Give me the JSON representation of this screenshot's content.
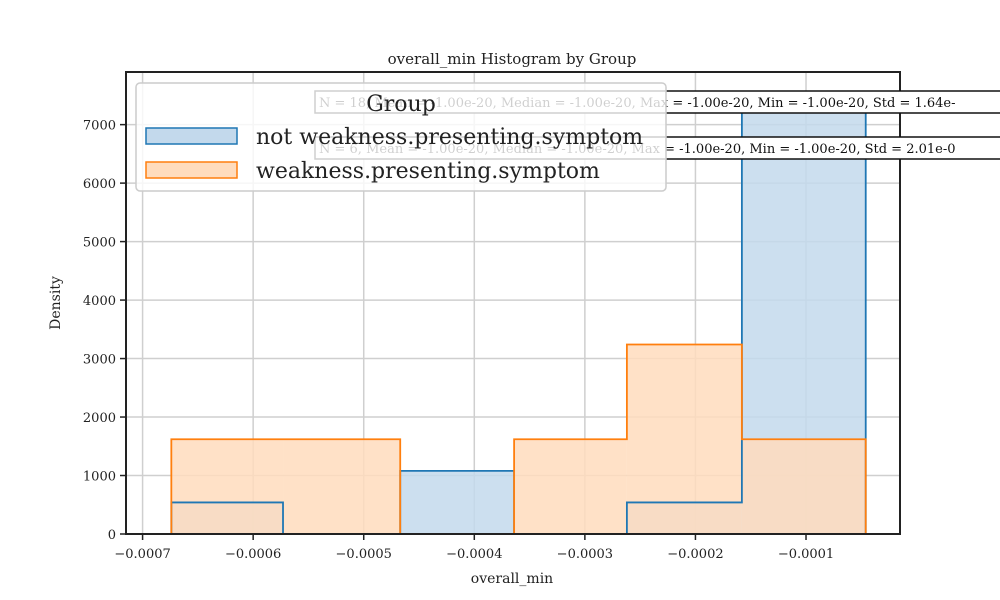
{
  "chart_data": {
    "type": "histogram",
    "title": "overall_min Histogram by Group",
    "xlabel": "overall_min",
    "ylabel": "Density",
    "xlim": [
      -0.000715,
      -1.5e-05
    ],
    "ylim": [
      0,
      7900
    ],
    "x_ticks": [
      -0.0007,
      -0.0006,
      -0.0005,
      -0.0004,
      -0.0003,
      -0.0002,
      -0.0001
    ],
    "x_tick_labels": [
      "−0.0007",
      "−0.0006",
      "−0.0005",
      "−0.0004",
      "−0.0003",
      "−0.0002",
      "−0.0001"
    ],
    "y_ticks": [
      0,
      1000,
      2000,
      3000,
      4000,
      5000,
      6000,
      7000
    ],
    "y_tick_labels": [
      "0",
      "1000",
      "2000",
      "3000",
      "4000",
      "5000",
      "6000",
      "7000"
    ],
    "grid": true,
    "bin_edges": [
      -0.000674,
      -0.000573,
      -0.000467,
      -0.000364,
      -0.000262,
      -0.000158,
      -4.6e-05
    ],
    "legend": {
      "title": "Group",
      "position": "upper-left"
    },
    "series": [
      {
        "name": "not weakness.presenting.symptom",
        "color": "#1f77b4",
        "fill": "#c3d9ec",
        "values": [
          540,
          0,
          1080,
          0,
          540,
          7500
        ],
        "stats": "N = 18, Mean = -1.00e-20, Median = -1.00e-20, Max = -1.00e-20, Min = -1.00e-20, Std = 1.64e-"
      },
      {
        "name": "weakness.presenting.symptom",
        "color": "#ff7f0e",
        "fill": "#ffdcbd",
        "values": [
          1620,
          1620,
          0,
          1620,
          3240,
          1620
        ],
        "stats": "N = 6, Mean = -1.00e-20, Median = -1.00e-20, Max = -1.00e-20, Min = -1.00e-20, Std = 2.01e-0"
      }
    ]
  }
}
